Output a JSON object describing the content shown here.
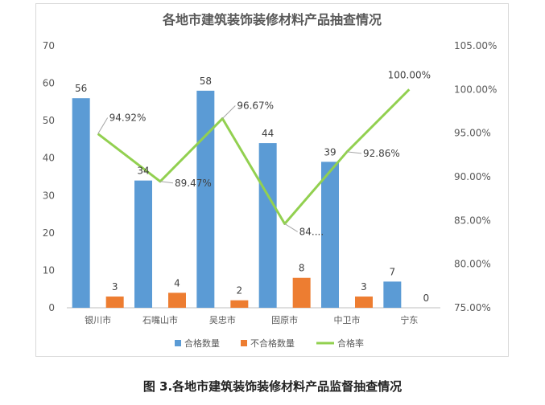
{
  "chart_data": {
    "type": "bar",
    "title": "各地市建筑装饰装修材料产品抽查情况",
    "caption": "图 3.各地市建筑装饰装修材料产品监督抽查情况",
    "categories": [
      "银川市",
      "石嘴山市",
      "吴忠市",
      "固原市",
      "中卫市",
      "宁东"
    ],
    "series": [
      {
        "name": "合格数量",
        "type": "bar",
        "axis": "left",
        "color": "#5b9bd5",
        "values": [
          56,
          34,
          58,
          44,
          39,
          7
        ],
        "labels": [
          "56",
          "34",
          "58",
          "44",
          "39",
          "7"
        ]
      },
      {
        "name": "不合格数量",
        "type": "bar",
        "axis": "left",
        "color": "#ed7d31",
        "values": [
          3,
          4,
          2,
          8,
          3,
          0
        ],
        "labels": [
          "3",
          "4",
          "2",
          "8",
          "3",
          "0"
        ]
      },
      {
        "name": "合格率",
        "type": "line",
        "axis": "right",
        "color": "#92d050",
        "values": [
          94.92,
          89.47,
          96.67,
          84.62,
          92.86,
          100.0
        ],
        "labels": [
          "94.92%",
          "89.47%",
          "96.67%",
          "84....",
          "92.86%",
          "100.00%"
        ]
      }
    ],
    "y_left": {
      "min": 0,
      "max": 70,
      "ticks": [
        "0",
        "10",
        "20",
        "30",
        "40",
        "50",
        "60",
        "70"
      ]
    },
    "y_right": {
      "min": 75,
      "max": 105,
      "ticks": [
        "75.00%",
        "80.00%",
        "85.00%",
        "90.00%",
        "95.00%",
        "100.00%",
        "105.00%"
      ]
    },
    "grid": false,
    "legend_position": "bottom"
  }
}
